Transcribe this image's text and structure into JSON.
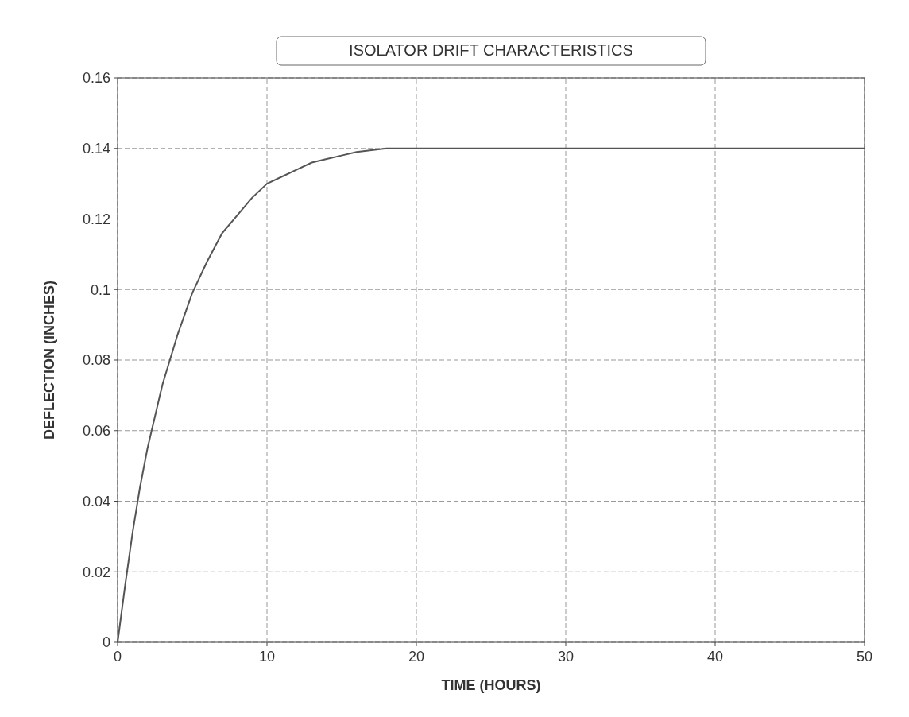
{
  "chart_data": {
    "type": "line",
    "title": "ISOLATOR DRIFT CHARACTERISTICS",
    "xlabel": "TIME (HOURS)",
    "ylabel": "DEFLECTION (INCHES)",
    "x": [
      0,
      0.5,
      1,
      1.5,
      2,
      2.5,
      3,
      3.5,
      4,
      5,
      6,
      7,
      8,
      9,
      10,
      11,
      12,
      13,
      14,
      15,
      16,
      17,
      18,
      20,
      25,
      30,
      35,
      40,
      45,
      50
    ],
    "series": [
      {
        "color": "#555555",
        "values": [
          0,
          0.016,
          0.031,
          0.044,
          0.055,
          0.064,
          0.073,
          0.08,
          0.087,
          0.099,
          0.108,
          0.116,
          0.121,
          0.126,
          0.13,
          0.132,
          0.134,
          0.136,
          0.137,
          0.138,
          0.139,
          0.1395,
          0.14,
          0.14,
          0.14,
          0.14,
          0.14,
          0.14,
          0.14,
          0.14
        ]
      }
    ],
    "xlim": [
      0,
      50
    ],
    "xticks": [
      0,
      10,
      20,
      30,
      40,
      50
    ],
    "ylim": [
      0,
      0.16
    ],
    "yticks": [
      0,
      0.02,
      0.04,
      0.06,
      0.08,
      0.1,
      0.12,
      0.14,
      0.16
    ],
    "grid": true
  }
}
